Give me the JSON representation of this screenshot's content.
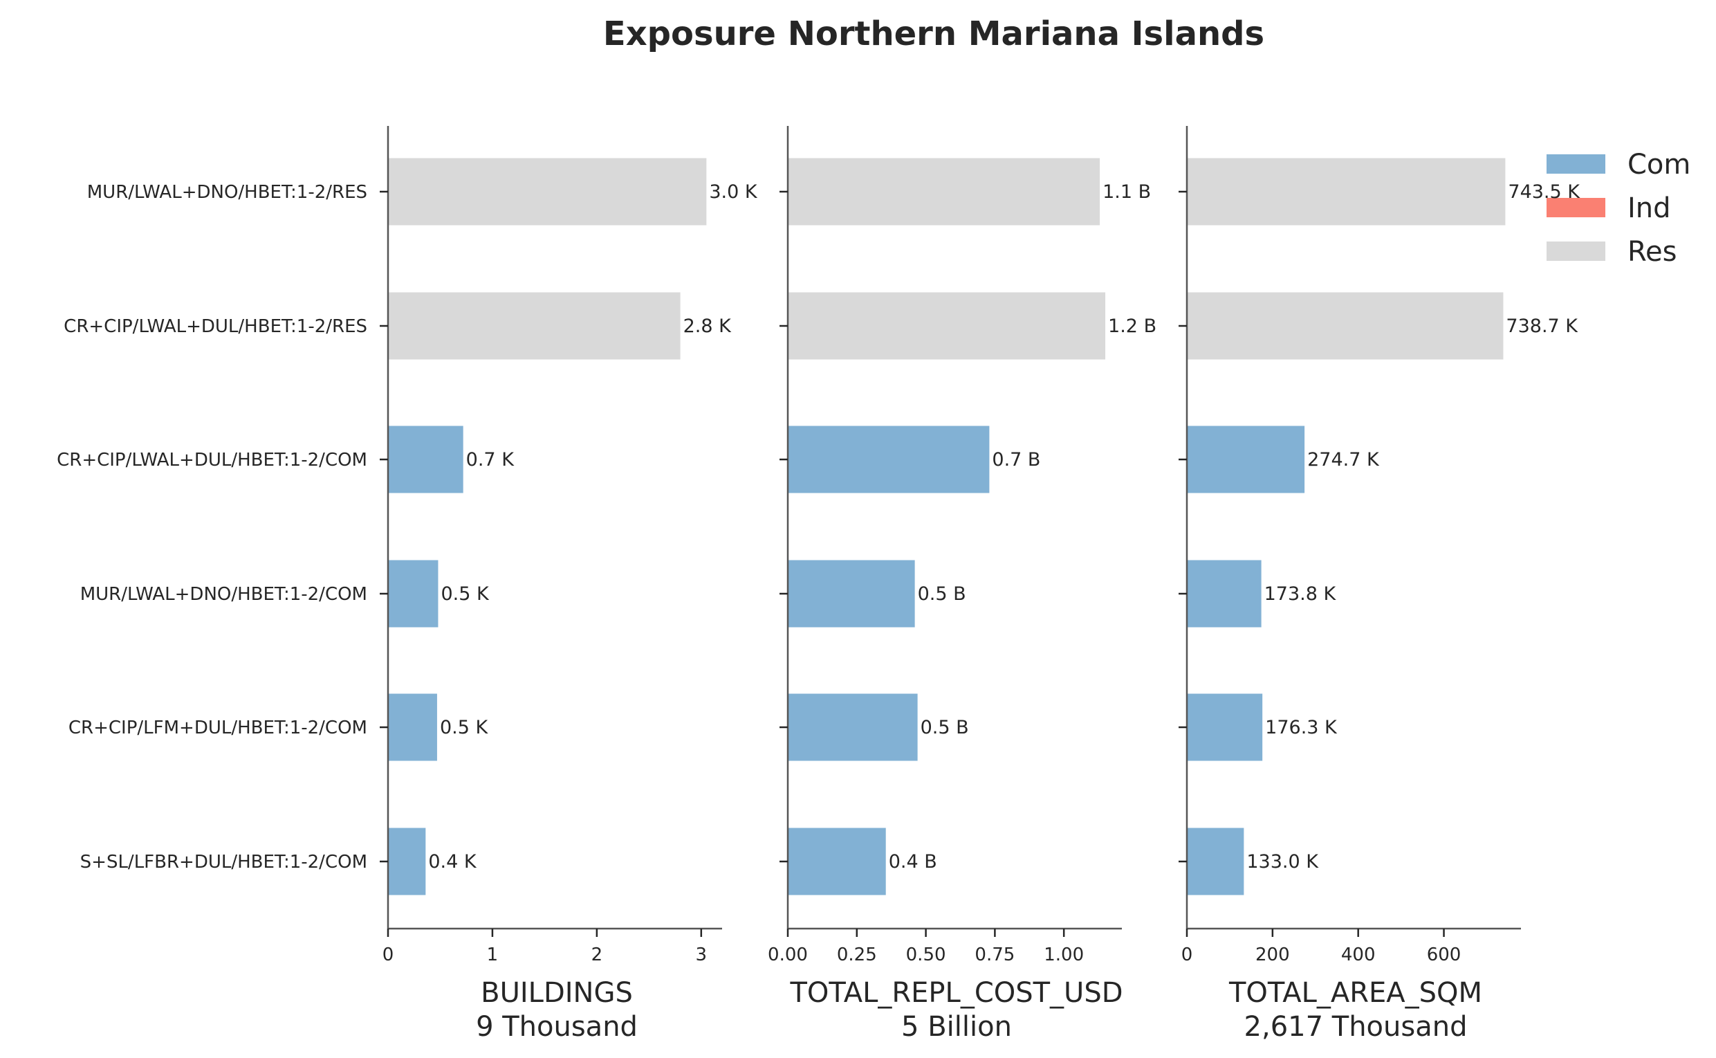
{
  "chart_data": {
    "type": "bar",
    "orientation": "horizontal",
    "title": "Exposure Northern Mariana Islands",
    "categories": [
      "MUR/LWAL+DNO/HBET:1-2/RES",
      "CR+CIP/LWAL+DUL/HBET:1-2/RES",
      "CR+CIP/LWAL+DUL/HBET:1-2/COM",
      "MUR/LWAL+DNO/HBET:1-2/COM",
      "CR+CIP/LFM+DUL/HBET:1-2/COM",
      "S+SL/LFBR+DUL/HBET:1-2/COM"
    ],
    "occupancy": [
      "Res",
      "Res",
      "Com",
      "Com",
      "Com",
      "Com"
    ],
    "legend": {
      "position": "top-right",
      "items": [
        {
          "name": "Com",
          "color": "#82b1d4"
        },
        {
          "name": "Ind",
          "color": "#fa8072"
        },
        {
          "name": "Res",
          "color": "#d9d9d9"
        }
      ]
    },
    "grid": false,
    "panels": [
      {
        "xlabel": "BUILDINGS",
        "total": "9 Thousand",
        "values": [
          3.05,
          2.8,
          0.72,
          0.48,
          0.47,
          0.36
        ],
        "value_labels": [
          "3.0 K",
          "2.8 K",
          "0.7 K",
          "0.5 K",
          "0.5 K",
          "0.4 K"
        ],
        "xlim": [
          0,
          3.2
        ],
        "ticks": [
          0,
          1,
          2,
          3
        ],
        "tick_labels": [
          "0",
          "1",
          "2",
          "3"
        ]
      },
      {
        "xlabel": "TOTAL_REPL_COST_USD",
        "total": "5 Billion",
        "values": [
          1.13,
          1.15,
          0.73,
          0.46,
          0.47,
          0.355
        ],
        "value_labels": [
          "1.1 B",
          "1.2 B",
          "0.7 B",
          "0.5 B",
          "0.5 B",
          "0.4 B"
        ],
        "xlim": [
          0,
          1.21
        ],
        "ticks": [
          0,
          0.25,
          0.5,
          0.75,
          1.0
        ],
        "tick_labels": [
          "0.00",
          "0.25",
          "0.50",
          "0.75",
          "1.00"
        ]
      },
      {
        "xlabel": "TOTAL_AREA_SQM",
        "total": "2,617 Thousand",
        "values": [
          743.5,
          738.7,
          274.7,
          173.8,
          176.3,
          133.0
        ],
        "value_labels": [
          "743.5 K",
          "738.7 K",
          "274.7 K",
          "173.8 K",
          "176.3 K",
          "133.0 K"
        ],
        "xlim": [
          0,
          780
        ],
        "ticks": [
          0,
          200,
          400,
          600
        ],
        "tick_labels": [
          "0",
          "200",
          "400",
          "600"
        ]
      }
    ]
  }
}
